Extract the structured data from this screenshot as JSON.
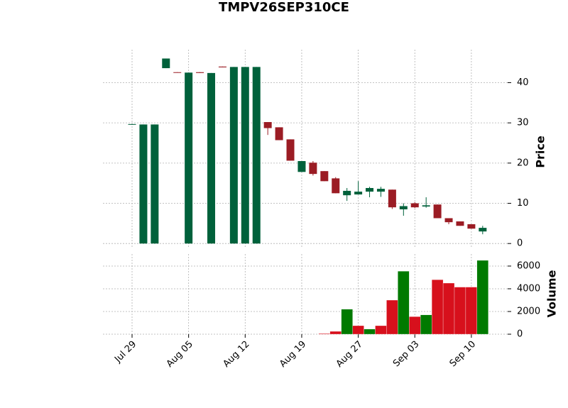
{
  "chart_data": {
    "type": "candlestick",
    "title": "TMPV26SEP310CE",
    "categories": [
      "Jul 29",
      null,
      null,
      null,
      null,
      "Aug 05",
      null,
      null,
      null,
      null,
      "Aug 12",
      null,
      null,
      null,
      null,
      "Aug 19",
      null,
      null,
      null,
      null,
      "Aug 27",
      null,
      null,
      null,
      null,
      "Sep 03",
      null,
      null,
      null,
      null,
      "Sep 10",
      null
    ],
    "open": [
      29.6,
      0,
      0,
      43.6,
      42.6,
      0,
      42.6,
      0,
      44.0,
      0,
      0,
      0,
      30.2,
      28.9,
      25.9,
      17.8,
      20.1,
      18.0,
      16.2,
      12.0,
      12.2,
      12.9,
      12.9,
      13.4,
      8.5,
      10.0,
      9.2,
      9.7,
      6.3,
      5.5,
      4.8,
      3.0
    ],
    "high": [
      29.7,
      29.6,
      29.6,
      46.0,
      42.6,
      42.5,
      42.6,
      42.4,
      44.0,
      43.9,
      43.9,
      43.9,
      30.2,
      28.9,
      25.9,
      20.5,
      20.5,
      18.0,
      16.5,
      13.8,
      15.5,
      14.1,
      14.1,
      13.4,
      10.0,
      10.3,
      11.5,
      9.7,
      6.3,
      5.5,
      4.8,
      4.4
    ],
    "low": [
      29.5,
      0,
      0,
      43.6,
      42.5,
      0,
      42.4,
      0,
      43.8,
      0,
      0,
      0,
      27.0,
      25.7,
      20.6,
      17.8,
      16.9,
      15.5,
      12.5,
      10.6,
      12.2,
      11.5,
      11.6,
      8.6,
      6.9,
      8.8,
      8.9,
      6.3,
      4.8,
      4.4,
      3.7,
      2.3
    ],
    "close": [
      29.7,
      29.6,
      29.6,
      46.0,
      42.5,
      42.5,
      42.4,
      42.4,
      43.8,
      43.9,
      43.9,
      43.9,
      28.7,
      25.7,
      20.6,
      20.5,
      17.3,
      15.5,
      12.5,
      13.1,
      12.9,
      13.8,
      13.6,
      9.0,
      9.3,
      9.0,
      9.5,
      6.3,
      5.3,
      4.4,
      3.7,
      3.9
    ],
    "volume": [
      0,
      0,
      0,
      0,
      0,
      0,
      0,
      0,
      0,
      0,
      0,
      0,
      0,
      0,
      0,
      0,
      0,
      60,
      250,
      2200,
      750,
      450,
      750,
      3000,
      5550,
      1550,
      1700,
      4800,
      4500,
      4150,
      4150,
      6500
    ],
    "up_color": "#00613b",
    "down_color": "#9b1c24",
    "volume_up_color": "#007a00",
    "volume_down_color": "#d7101c",
    "ylabel": "Price",
    "y2label": "Volume",
    "ylim": [
      -1.2,
      48.2
    ],
    "yticks": [
      0,
      10,
      20,
      30,
      40
    ],
    "y2lim": [
      0,
      7060
    ],
    "y2ticks": [
      0,
      2000,
      4000,
      6000
    ],
    "grid": true
  }
}
